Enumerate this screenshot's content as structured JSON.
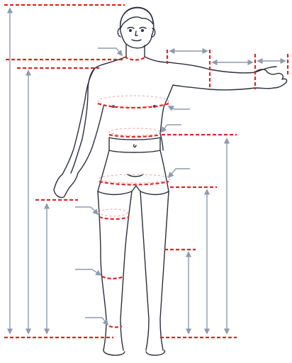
{
  "diagram": {
    "subject": "male-body-measurement-chart",
    "colors": {
      "outline": "#2a2f3a",
      "measure_line": "#e02424",
      "guide_line": "#f2a0a0",
      "arrow": "#8e9aaf"
    },
    "measurement_points": [
      {
        "name": "neck"
      },
      {
        "name": "chest"
      },
      {
        "name": "waist"
      },
      {
        "name": "hips"
      },
      {
        "name": "thigh"
      },
      {
        "name": "knee"
      },
      {
        "name": "ankle"
      },
      {
        "name": "shoulder-to-elbow"
      },
      {
        "name": "elbow-to-wrist"
      },
      {
        "name": "hand"
      }
    ],
    "height_markers": [
      {
        "name": "total-height"
      },
      {
        "name": "shoulder-height"
      },
      {
        "name": "waist-height"
      },
      {
        "name": "hip-height"
      },
      {
        "name": "knee-height"
      },
      {
        "name": "crotch-height"
      },
      {
        "name": "arm-height"
      }
    ]
  }
}
